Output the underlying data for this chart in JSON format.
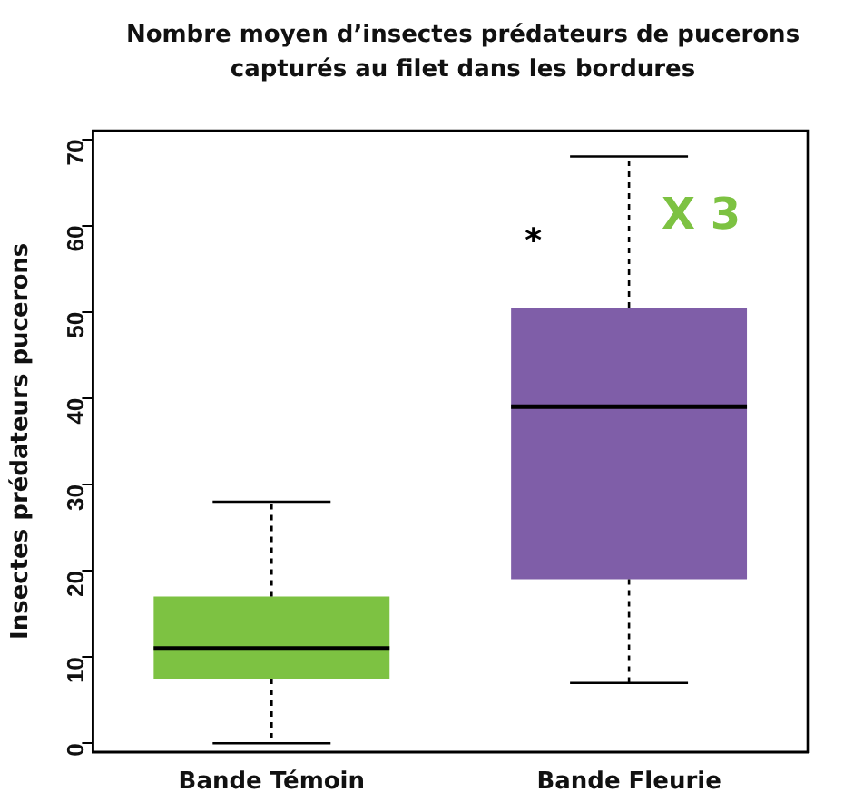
{
  "chart_data": {
    "type": "box",
    "title": "Nombre moyen d’insectes prédateurs de pucerons capturés au filet dans les bordures",
    "ylabel": "Insectes prédateurs pucerons",
    "categories": [
      "Bande Témoin",
      "Bande Fleurie"
    ],
    "colors": [
      "#7dc242",
      "#7f5ea8"
    ],
    "boxes": [
      {
        "low": 0,
        "q1": 7.5,
        "median": 11,
        "q3": 17,
        "high": 28
      },
      {
        "low": 7,
        "q1": 19,
        "median": 39,
        "q3": 50.5,
        "high": 68
      }
    ],
    "ylim": [
      -1,
      71
    ],
    "yticks": [
      0,
      10,
      20,
      30,
      40,
      50,
      60,
      70
    ],
    "grid": false,
    "annotations": [
      {
        "text": "*",
        "x": "Bande Fleurie",
        "y": 58
      },
      {
        "text": "X 3",
        "x": "Bande Fleurie",
        "y": 61
      }
    ]
  }
}
